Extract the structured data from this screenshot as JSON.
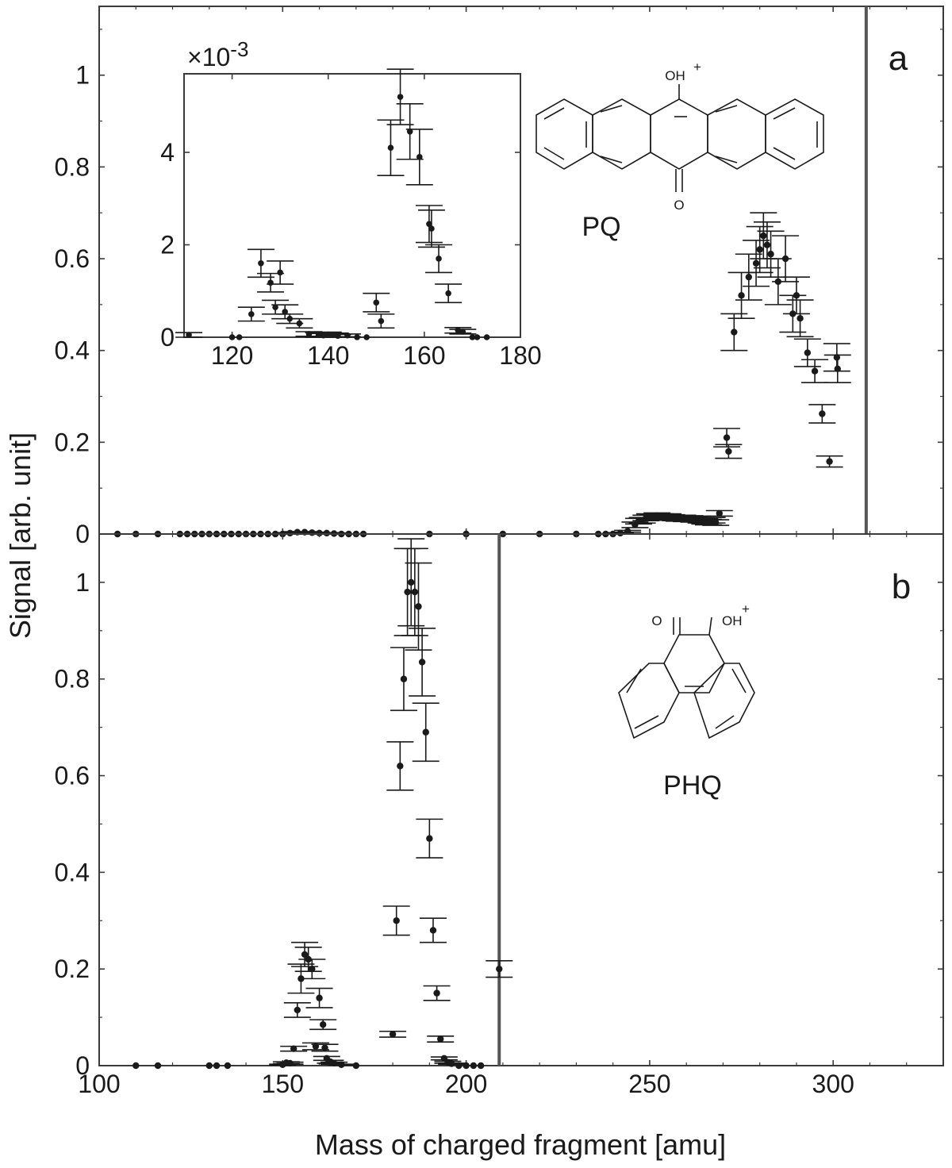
{
  "figure": {
    "ylabel": "Signal [arb. unit]",
    "xlabel": "Mass of charged fragment [amu]",
    "panel_a_label": "a",
    "panel_b_label": "b",
    "inset_multiplier": "×10",
    "inset_exponent": "-3"
  },
  "molecules": {
    "pq": {
      "name": "PQ",
      "top_group": "OH",
      "top_charge": "+",
      "bottom_group": "O"
    },
    "phq": {
      "name": "PHQ",
      "left_group": "O",
      "right_group": "OH",
      "right_charge": "+"
    }
  },
  "chart_data": [
    {
      "id": "panel-a",
      "type": "scatter",
      "xlim": [
        100,
        330
      ],
      "ylim": [
        0,
        1.15
      ],
      "xticks": [
        100,
        150,
        200,
        250,
        300
      ],
      "yticks": [
        0,
        0.2,
        0.4,
        0.6,
        0.8,
        1
      ],
      "ytick_labels": [
        "0",
        "0.2",
        "0.4",
        "0.6",
        "0.8",
        "1"
      ],
      "show_xtick_labels": false,
      "error_bars": true,
      "vline": 309,
      "points": [
        [
          105,
          0,
          0
        ],
        [
          110,
          0,
          0
        ],
        [
          116,
          0,
          0
        ],
        [
          122,
          0,
          0
        ],
        [
          124,
          0,
          0
        ],
        [
          126,
          0,
          0
        ],
        [
          128,
          0,
          0
        ],
        [
          130,
          0,
          0
        ],
        [
          132,
          0,
          0
        ],
        [
          134,
          0,
          0
        ],
        [
          136,
          0,
          0
        ],
        [
          138,
          0,
          0
        ],
        [
          140,
          0,
          0
        ],
        [
          142,
          0,
          0
        ],
        [
          144,
          0,
          0
        ],
        [
          146,
          0,
          0
        ],
        [
          148,
          0,
          0
        ],
        [
          150,
          0,
          0
        ],
        [
          152,
          0.002,
          0.001
        ],
        [
          154,
          0.004,
          0.001
        ],
        [
          156,
          0.004,
          0.001
        ],
        [
          158,
          0.003,
          0.001
        ],
        [
          160,
          0.002,
          0.001
        ],
        [
          162,
          0.002,
          0.001
        ],
        [
          164,
          0.001,
          0.001
        ],
        [
          166,
          0,
          0
        ],
        [
          168,
          0,
          0
        ],
        [
          170,
          0,
          0
        ],
        [
          172,
          0,
          0
        ],
        [
          190,
          0,
          0
        ],
        [
          200,
          0,
          0
        ],
        [
          210,
          0,
          0
        ],
        [
          220,
          0,
          0
        ],
        [
          230,
          0,
          0
        ],
        [
          236,
          0,
          0
        ],
        [
          238,
          0,
          0
        ],
        [
          240,
          0,
          0
        ],
        [
          242,
          0.002,
          0.001
        ],
        [
          244,
          0.006,
          0.002
        ],
        [
          246,
          0.02,
          0.006
        ],
        [
          247,
          0.028,
          0.006
        ],
        [
          248,
          0.03,
          0.006
        ],
        [
          249,
          0.035,
          0.006
        ],
        [
          250,
          0.038,
          0.006
        ],
        [
          251,
          0.036,
          0.006
        ],
        [
          252,
          0.04,
          0.006
        ],
        [
          253,
          0.038,
          0.006
        ],
        [
          254,
          0.037,
          0.006
        ],
        [
          255,
          0.038,
          0.006
        ],
        [
          256,
          0.036,
          0.006
        ],
        [
          257,
          0.035,
          0.006
        ],
        [
          258,
          0.034,
          0.006
        ],
        [
          259,
          0.035,
          0.006
        ],
        [
          260,
          0.033,
          0.006
        ],
        [
          261,
          0.034,
          0.006
        ],
        [
          262,
          0.032,
          0.006
        ],
        [
          263,
          0.033,
          0.006
        ],
        [
          264,
          0.03,
          0.006
        ],
        [
          265,
          0.028,
          0.006
        ],
        [
          266,
          0.026,
          0.006
        ],
        [
          267,
          0.03,
          0.006
        ],
        [
          268,
          0.025,
          0.006
        ],
        [
          269,
          0.045,
          0.006
        ],
        [
          271,
          0.21,
          0.02
        ],
        [
          271.5,
          0.18,
          0.015
        ],
        [
          273,
          0.44,
          0.04
        ],
        [
          275,
          0.52,
          0.05
        ],
        [
          277,
          0.56,
          0.05
        ],
        [
          279,
          0.59,
          0.05
        ],
        [
          280,
          0.62,
          0.05
        ],
        [
          281,
          0.65,
          0.05
        ],
        [
          282,
          0.63,
          0.05
        ],
        [
          283,
          0.61,
          0.05
        ],
        [
          285,
          0.55,
          0.05
        ],
        [
          287,
          0.6,
          0.05
        ],
        [
          289,
          0.48,
          0.04
        ],
        [
          290,
          0.52,
          0.04
        ],
        [
          291,
          0.47,
          0.04
        ],
        [
          293,
          0.395,
          0.03
        ],
        [
          295,
          0.355,
          0.025
        ],
        [
          297,
          0.262,
          0.02
        ],
        [
          299,
          0.158,
          0.012
        ],
        [
          301,
          0.385,
          0.03
        ],
        [
          301.2,
          0.36,
          0.03
        ]
      ]
    },
    {
      "id": "panel-a-inset",
      "type": "scatter",
      "xlim": [
        110,
        180
      ],
      "ylim": [
        0,
        5.7
      ],
      "xticks": [
        120,
        140,
        160,
        180
      ],
      "yticks": [
        0,
        2,
        4
      ],
      "ytick_labels": [
        "0",
        "2",
        "4"
      ],
      "show_xtick_labels": true,
      "error_bars": true,
      "multiplier_label": "×10^-3",
      "points": [
        [
          111,
          0.05,
          0.05
        ],
        [
          120,
          0,
          0
        ],
        [
          121.5,
          0,
          0
        ],
        [
          124,
          0.5,
          0.15
        ],
        [
          126,
          1.6,
          0.3
        ],
        [
          128,
          1.18,
          0.2
        ],
        [
          129,
          0.65,
          0.15
        ],
        [
          130,
          1.4,
          0.25
        ],
        [
          131,
          0.55,
          0.15
        ],
        [
          132,
          0.4,
          0.1
        ],
        [
          134,
          0.3,
          0.1
        ],
        [
          136,
          0.07,
          0.05
        ],
        [
          138,
          0.05,
          0.05
        ],
        [
          139,
          0.04,
          0.04
        ],
        [
          140,
          0.06,
          0.05
        ],
        [
          141,
          0.05,
          0.04
        ],
        [
          142,
          0.03,
          0.03
        ],
        [
          144,
          0.04,
          0.03
        ],
        [
          146,
          0,
          0
        ],
        [
          148,
          0,
          0
        ],
        [
          150,
          0.75,
          0.2
        ],
        [
          151,
          0.35,
          0.15
        ],
        [
          153,
          4.1,
          0.6
        ],
        [
          155,
          5.2,
          0.6
        ],
        [
          157,
          4.45,
          0.6
        ],
        [
          159,
          3.9,
          0.6
        ],
        [
          161,
          2.45,
          0.4
        ],
        [
          161.5,
          2.35,
          0.4
        ],
        [
          163,
          1.7,
          0.3
        ],
        [
          165,
          0.95,
          0.2
        ],
        [
          167,
          0.15,
          0.06
        ],
        [
          168,
          0.12,
          0.05
        ],
        [
          170,
          0,
          0
        ],
        [
          171,
          0,
          0
        ],
        [
          173,
          0,
          0
        ]
      ]
    },
    {
      "id": "panel-b",
      "type": "scatter",
      "xlim": [
        100,
        330
      ],
      "ylim": [
        0,
        1.1
      ],
      "xticks": [
        100,
        150,
        200,
        250,
        300
      ],
      "xtick_labels": [
        "100",
        "150",
        "200",
        "250",
        "300"
      ],
      "yticks": [
        0,
        0.2,
        0.4,
        0.6,
        0.8,
        1
      ],
      "ytick_labels": [
        "0",
        "0.2",
        "0.4",
        "0.6",
        "0.8",
        "1"
      ],
      "show_xtick_labels": true,
      "error_bars": true,
      "vline": 209,
      "points": [
        [
          110,
          0,
          0
        ],
        [
          116,
          0,
          0
        ],
        [
          130,
          0,
          0
        ],
        [
          132,
          0,
          0
        ],
        [
          135,
          0,
          0
        ],
        [
          150,
          0.002,
          0.001
        ],
        [
          151,
          0.006,
          0.002
        ],
        [
          152,
          0.005,
          0.002
        ],
        [
          153,
          0.035,
          0.005
        ],
        [
          154,
          0.115,
          0.015
        ],
        [
          155,
          0.18,
          0.03
        ],
        [
          156,
          0.23,
          0.025
        ],
        [
          157,
          0.22,
          0.025
        ],
        [
          158,
          0.2,
          0.02
        ],
        [
          159,
          0.04,
          0.007
        ],
        [
          160,
          0.14,
          0.02
        ],
        [
          161,
          0.085,
          0.01
        ],
        [
          161.5,
          0.037,
          0.007
        ],
        [
          162,
          0.015,
          0.004
        ],
        [
          163,
          0.008,
          0.003
        ],
        [
          164,
          0.005,
          0.002
        ],
        [
          166,
          0.002,
          0.001
        ],
        [
          170,
          0,
          0
        ],
        [
          180,
          0.065,
          0.006
        ],
        [
          181,
          0.3,
          0.03
        ],
        [
          182,
          0.62,
          0.05
        ],
        [
          183,
          0.8,
          0.065
        ],
        [
          184,
          0.98,
          0.09
        ],
        [
          185,
          1.0,
          0.09
        ],
        [
          186,
          0.98,
          0.09
        ],
        [
          187,
          0.95,
          0.09
        ],
        [
          188,
          0.835,
          0.07
        ],
        [
          189,
          0.69,
          0.06
        ],
        [
          190,
          0.47,
          0.04
        ],
        [
          191,
          0.28,
          0.025
        ],
        [
          192,
          0.15,
          0.015
        ],
        [
          193,
          0.055,
          0.006
        ],
        [
          194,
          0.015,
          0.003
        ],
        [
          195,
          0.007,
          0.002
        ],
        [
          196,
          0.004,
          0.001
        ],
        [
          198,
          0,
          0
        ],
        [
          200,
          0,
          0
        ],
        [
          202,
          0,
          0
        ],
        [
          204,
          0,
          0
        ],
        [
          209,
          0.2,
          0.017
        ]
      ]
    }
  ]
}
